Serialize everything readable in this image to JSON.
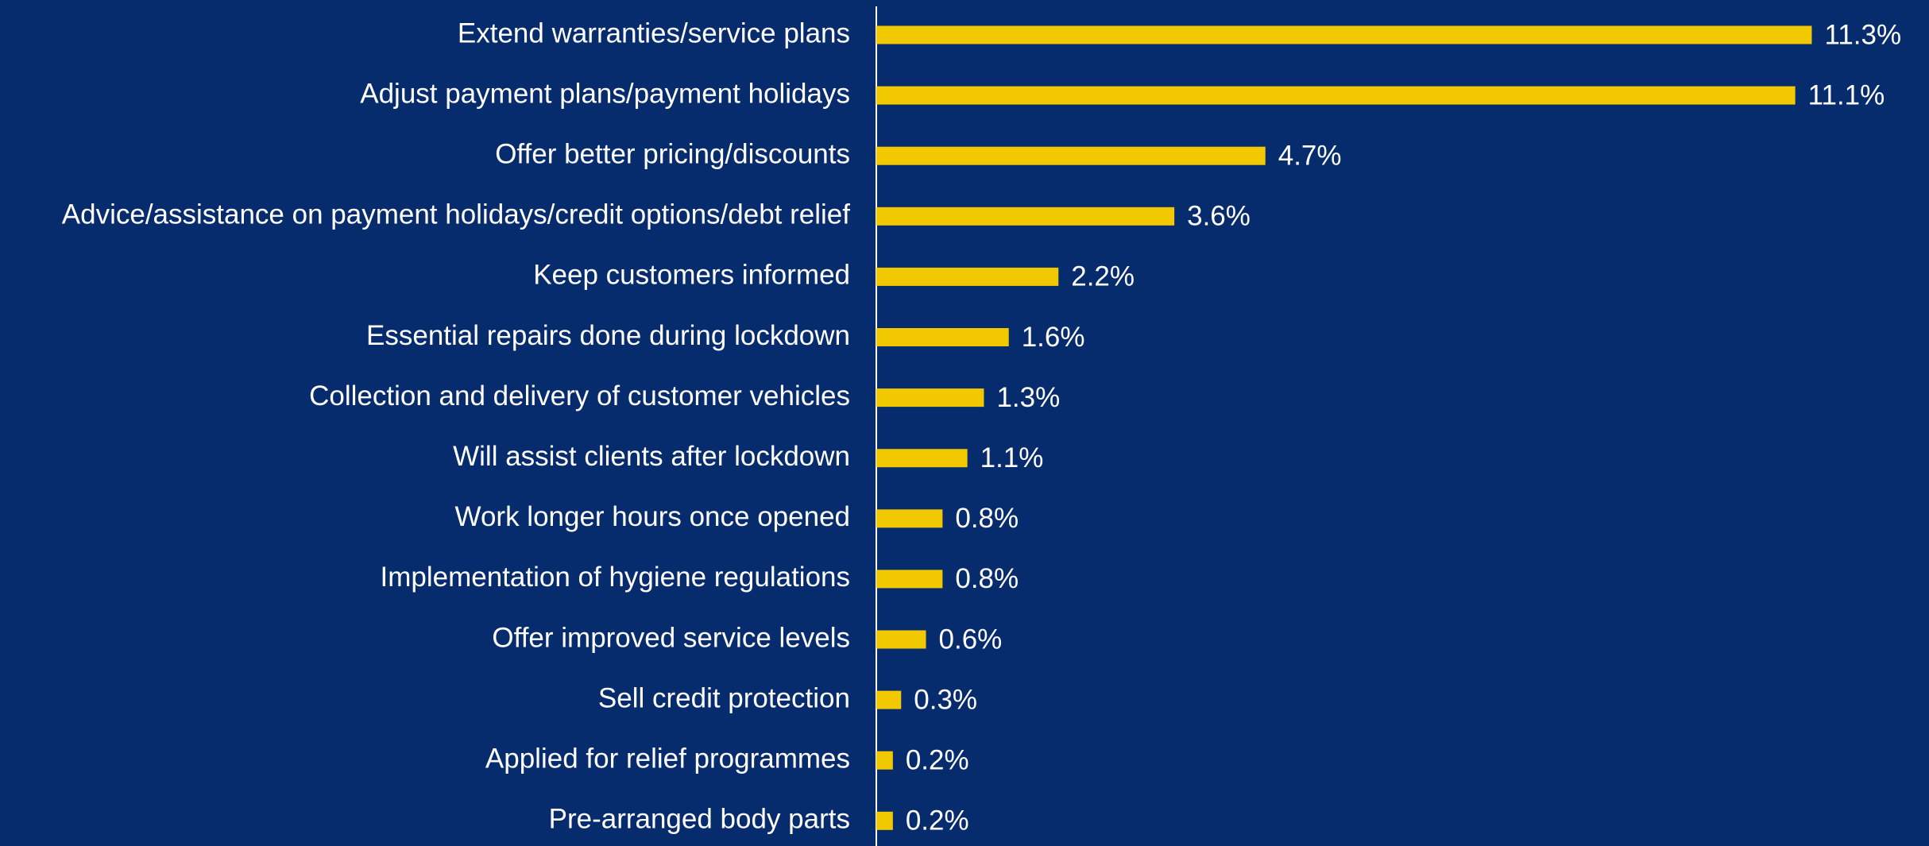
{
  "chart_data": {
    "type": "bar",
    "orientation": "horizontal",
    "color": "#f2c900",
    "categories": [
      "Extend warranties/service plans",
      "Adjust payment plans/payment holidays",
      "Offer better pricing/discounts",
      "Advice/assistance on payment holidays/credit options/debt relief",
      "Keep customers informed",
      "Essential repairs done during lockdown",
      "Collection and delivery of customer vehicles",
      "Will assist clients after lockdown",
      "Work longer hours once opened",
      "Implementation of hygiene regulations",
      "Offer improved service levels",
      "Sell credit protection",
      "Applied for relief programmes",
      "Pre-arranged body parts"
    ],
    "values": [
      11.3,
      11.1,
      4.7,
      3.6,
      2.2,
      1.6,
      1.3,
      1.1,
      0.8,
      0.8,
      0.6,
      0.3,
      0.2,
      0.2
    ],
    "value_labels": [
      "11.3%",
      "11.1%",
      "4.7%",
      "3.6%",
      "2.2%",
      "1.6%",
      "1.3%",
      "1.1%",
      "0.8%",
      "0.8%",
      "0.6%",
      "0.3%",
      "0.2%",
      "0.2%"
    ]
  }
}
